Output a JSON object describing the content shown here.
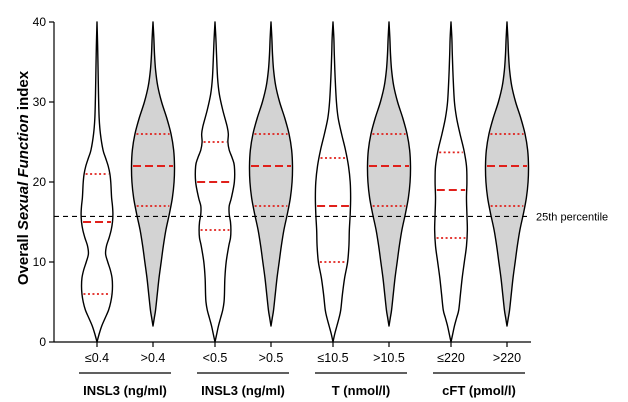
{
  "chart_data": {
    "type": "violin",
    "ylabel": {
      "prefix": "Overall ",
      "italic": "Sexual Function",
      "suffix": " index"
    },
    "ylim": [
      0,
      40
    ],
    "yticks": [
      0,
      10,
      20,
      30,
      40
    ],
    "reference_line": {
      "value": 15.7,
      "label": "25th percentile"
    },
    "groups": [
      {
        "label": "INSL3 (ng/ml)",
        "categories": [
          0,
          1
        ]
      },
      {
        "label": "INSL3 (ng/ml)",
        "categories": [
          2,
          3
        ]
      },
      {
        "label": "T (nmol/l)",
        "categories": [
          4,
          5
        ]
      },
      {
        "label": "cFT (pmol/l)",
        "categories": [
          6,
          7
        ]
      }
    ],
    "categories": [
      {
        "label": "≤0.4",
        "filled": false,
        "median": 15,
        "q1": 6,
        "q3": 21,
        "min": 0,
        "max": 40,
        "profile": [
          [
            0,
            0.0
          ],
          [
            1,
            0.05
          ],
          [
            2,
            0.11
          ],
          [
            3,
            0.19
          ],
          [
            4,
            0.27
          ],
          [
            5,
            0.32
          ],
          [
            6,
            0.35
          ],
          [
            7,
            0.36
          ],
          [
            8,
            0.35
          ],
          [
            9,
            0.31
          ],
          [
            10,
            0.25
          ],
          [
            11,
            0.2
          ],
          [
            12,
            0.22
          ],
          [
            13,
            0.28
          ],
          [
            14,
            0.33
          ],
          [
            15,
            0.36
          ],
          [
            16,
            0.37
          ],
          [
            17,
            0.36
          ],
          [
            18,
            0.34
          ],
          [
            19,
            0.33
          ],
          [
            20,
            0.32
          ],
          [
            21,
            0.3
          ],
          [
            22,
            0.26
          ],
          [
            23,
            0.2
          ],
          [
            24,
            0.14
          ],
          [
            26,
            0.08
          ],
          [
            28,
            0.05
          ],
          [
            31,
            0.035
          ],
          [
            34,
            0.025
          ],
          [
            37,
            0.015
          ],
          [
            40,
            0.0
          ]
        ]
      },
      {
        "label": ">0.4",
        "filled": true,
        "median": 22,
        "q1": 17,
        "q3": 26,
        "min": 2,
        "max": 40,
        "profile": [
          [
            2,
            0.0
          ],
          [
            3,
            0.03
          ],
          [
            4,
            0.06
          ],
          [
            6,
            0.1
          ],
          [
            8,
            0.14
          ],
          [
            10,
            0.19
          ],
          [
            12,
            0.24
          ],
          [
            14,
            0.3
          ],
          [
            16,
            0.38
          ],
          [
            18,
            0.45
          ],
          [
            20,
            0.49
          ],
          [
            22,
            0.5
          ],
          [
            24,
            0.48
          ],
          [
            26,
            0.42
          ],
          [
            28,
            0.32
          ],
          [
            30,
            0.2
          ],
          [
            32,
            0.11
          ],
          [
            34,
            0.06
          ],
          [
            36,
            0.035
          ],
          [
            38,
            0.02
          ],
          [
            40,
            0.0
          ]
        ]
      },
      {
        "label": "<0.5",
        "filled": false,
        "median": 20,
        "q1": 14,
        "q3": 25,
        "min": 0,
        "max": 40,
        "profile": [
          [
            0,
            0.0
          ],
          [
            1,
            0.04
          ],
          [
            2,
            0.08
          ],
          [
            3,
            0.13
          ],
          [
            4,
            0.18
          ],
          [
            5,
            0.21
          ],
          [
            6,
            0.22
          ],
          [
            8,
            0.23
          ],
          [
            10,
            0.26
          ],
          [
            12,
            0.32
          ],
          [
            13,
            0.36
          ],
          [
            14,
            0.37
          ],
          [
            15,
            0.36
          ],
          [
            16,
            0.33
          ],
          [
            17,
            0.33
          ],
          [
            18,
            0.38
          ],
          [
            20,
            0.45
          ],
          [
            22,
            0.45
          ],
          [
            23,
            0.4
          ],
          [
            24,
            0.33
          ],
          [
            25,
            0.3
          ],
          [
            26,
            0.31
          ],
          [
            27,
            0.28
          ],
          [
            29,
            0.18
          ],
          [
            31,
            0.1
          ],
          [
            33,
            0.06
          ],
          [
            36,
            0.035
          ],
          [
            38,
            0.02
          ],
          [
            40,
            0.0
          ]
        ]
      },
      {
        "label": ">0.5",
        "filled": true,
        "median": 22,
        "q1": 17,
        "q3": 26,
        "min": 2,
        "max": 40,
        "profile": [
          [
            2,
            0.0
          ],
          [
            3,
            0.03
          ],
          [
            4,
            0.06
          ],
          [
            6,
            0.1
          ],
          [
            8,
            0.14
          ],
          [
            10,
            0.19
          ],
          [
            12,
            0.24
          ],
          [
            14,
            0.3
          ],
          [
            16,
            0.38
          ],
          [
            18,
            0.45
          ],
          [
            20,
            0.49
          ],
          [
            22,
            0.5
          ],
          [
            24,
            0.48
          ],
          [
            26,
            0.42
          ],
          [
            28,
            0.32
          ],
          [
            30,
            0.2
          ],
          [
            32,
            0.11
          ],
          [
            34,
            0.06
          ],
          [
            36,
            0.035
          ],
          [
            38,
            0.02
          ],
          [
            40,
            0.0
          ]
        ]
      },
      {
        "label": "≤10.5",
        "filled": false,
        "median": 17,
        "q1": 10,
        "q3": 23,
        "min": 0,
        "max": 40,
        "profile": [
          [
            0,
            0.0
          ],
          [
            1,
            0.04
          ],
          [
            2,
            0.09
          ],
          [
            3,
            0.14
          ],
          [
            4,
            0.18
          ],
          [
            6,
            0.22
          ],
          [
            8,
            0.27
          ],
          [
            10,
            0.34
          ],
          [
            12,
            0.37
          ],
          [
            14,
            0.38
          ],
          [
            16,
            0.4
          ],
          [
            18,
            0.41
          ],
          [
            20,
            0.4
          ],
          [
            22,
            0.36
          ],
          [
            24,
            0.29
          ],
          [
            26,
            0.2
          ],
          [
            28,
            0.12
          ],
          [
            30,
            0.08
          ],
          [
            33,
            0.05
          ],
          [
            36,
            0.03
          ],
          [
            38,
            0.02
          ],
          [
            40,
            0.0
          ]
        ]
      },
      {
        "label": ">10.5",
        "filled": true,
        "median": 22,
        "q1": 17,
        "q3": 26,
        "min": 2,
        "max": 40,
        "profile": [
          [
            2,
            0.0
          ],
          [
            3,
            0.03
          ],
          [
            4,
            0.06
          ],
          [
            6,
            0.1
          ],
          [
            8,
            0.14
          ],
          [
            10,
            0.19
          ],
          [
            12,
            0.24
          ],
          [
            14,
            0.3
          ],
          [
            16,
            0.38
          ],
          [
            18,
            0.45
          ],
          [
            20,
            0.49
          ],
          [
            22,
            0.5
          ],
          [
            24,
            0.48
          ],
          [
            26,
            0.42
          ],
          [
            28,
            0.32
          ],
          [
            30,
            0.2
          ],
          [
            32,
            0.11
          ],
          [
            34,
            0.06
          ],
          [
            36,
            0.035
          ],
          [
            38,
            0.02
          ],
          [
            40,
            0.0
          ]
        ]
      },
      {
        "label": "≤220",
        "filled": false,
        "median": 19,
        "q1": 13,
        "q3": 23.7,
        "min": 0,
        "max": 40,
        "profile": [
          [
            0,
            0.0
          ],
          [
            1,
            0.04
          ],
          [
            2,
            0.08
          ],
          [
            3,
            0.13
          ],
          [
            4,
            0.18
          ],
          [
            6,
            0.22
          ],
          [
            8,
            0.26
          ],
          [
            10,
            0.31
          ],
          [
            12,
            0.36
          ],
          [
            14,
            0.38
          ],
          [
            16,
            0.37
          ],
          [
            18,
            0.36
          ],
          [
            20,
            0.37
          ],
          [
            22,
            0.36
          ],
          [
            24,
            0.3
          ],
          [
            26,
            0.21
          ],
          [
            28,
            0.13
          ],
          [
            30,
            0.08
          ],
          [
            33,
            0.05
          ],
          [
            36,
            0.03
          ],
          [
            38,
            0.02
          ],
          [
            40,
            0.0
          ]
        ]
      },
      {
        "label": ">220",
        "filled": true,
        "median": 22,
        "q1": 17,
        "q3": 26,
        "min": 2,
        "max": 40,
        "profile": [
          [
            2,
            0.0
          ],
          [
            3,
            0.03
          ],
          [
            4,
            0.06
          ],
          [
            6,
            0.1
          ],
          [
            8,
            0.14
          ],
          [
            10,
            0.19
          ],
          [
            12,
            0.24
          ],
          [
            14,
            0.3
          ],
          [
            16,
            0.38
          ],
          [
            18,
            0.45
          ],
          [
            20,
            0.49
          ],
          [
            22,
            0.5
          ],
          [
            24,
            0.48
          ],
          [
            26,
            0.42
          ],
          [
            28,
            0.32
          ],
          [
            30,
            0.2
          ],
          [
            32,
            0.11
          ],
          [
            34,
            0.06
          ],
          [
            36,
            0.035
          ],
          [
            38,
            0.02
          ],
          [
            40,
            0.0
          ]
        ]
      }
    ],
    "colors": {
      "fill": "#d3d3d3",
      "outline": "#000000",
      "median": "#e0201b",
      "quartile": "#e0201b"
    },
    "grid": false
  }
}
